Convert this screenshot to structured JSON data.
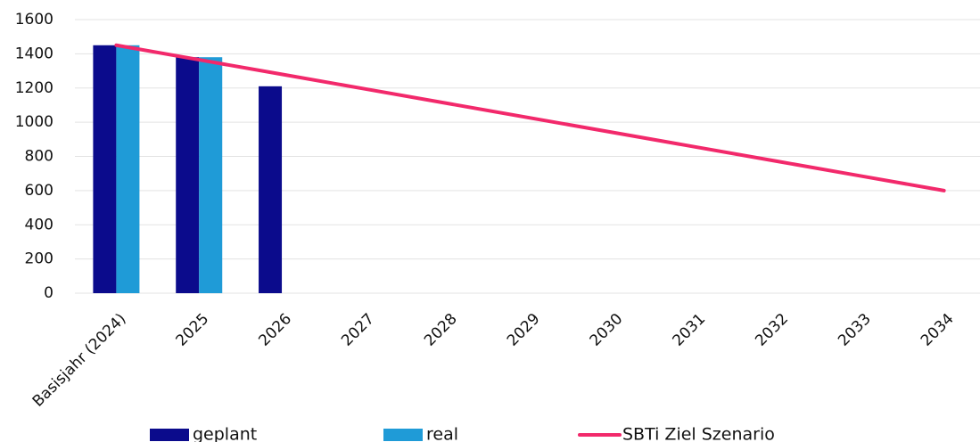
{
  "chart_data": {
    "type": "bar",
    "categories": [
      "Basisjahr (2024)",
      "2025",
      "2026",
      "2027",
      "2028",
      "2029",
      "2030",
      "2031",
      "2032",
      "2033",
      "2034"
    ],
    "series": [
      {
        "name": "geplant",
        "type": "bar",
        "color": "#0b0b8c",
        "values": [
          1450,
          1380,
          1210,
          null,
          null,
          null,
          null,
          null,
          null,
          null,
          null
        ]
      },
      {
        "name": "real",
        "type": "bar",
        "color": "#1f9bd7",
        "values": [
          1450,
          1380,
          null,
          null,
          null,
          null,
          null,
          null,
          null,
          null,
          null
        ]
      },
      {
        "name": "SBTi Ziel Szenario",
        "type": "line",
        "color": "#f2296b",
        "values": [
          1450,
          1365,
          1280,
          1195,
          1110,
          1025,
          940,
          855,
          770,
          685,
          600
        ]
      }
    ],
    "ylim": [
      0,
      1600
    ],
    "yticks": [
      0,
      200,
      400,
      600,
      800,
      1000,
      1200,
      1400,
      1600
    ],
    "grid": true,
    "legend": "bottom"
  }
}
